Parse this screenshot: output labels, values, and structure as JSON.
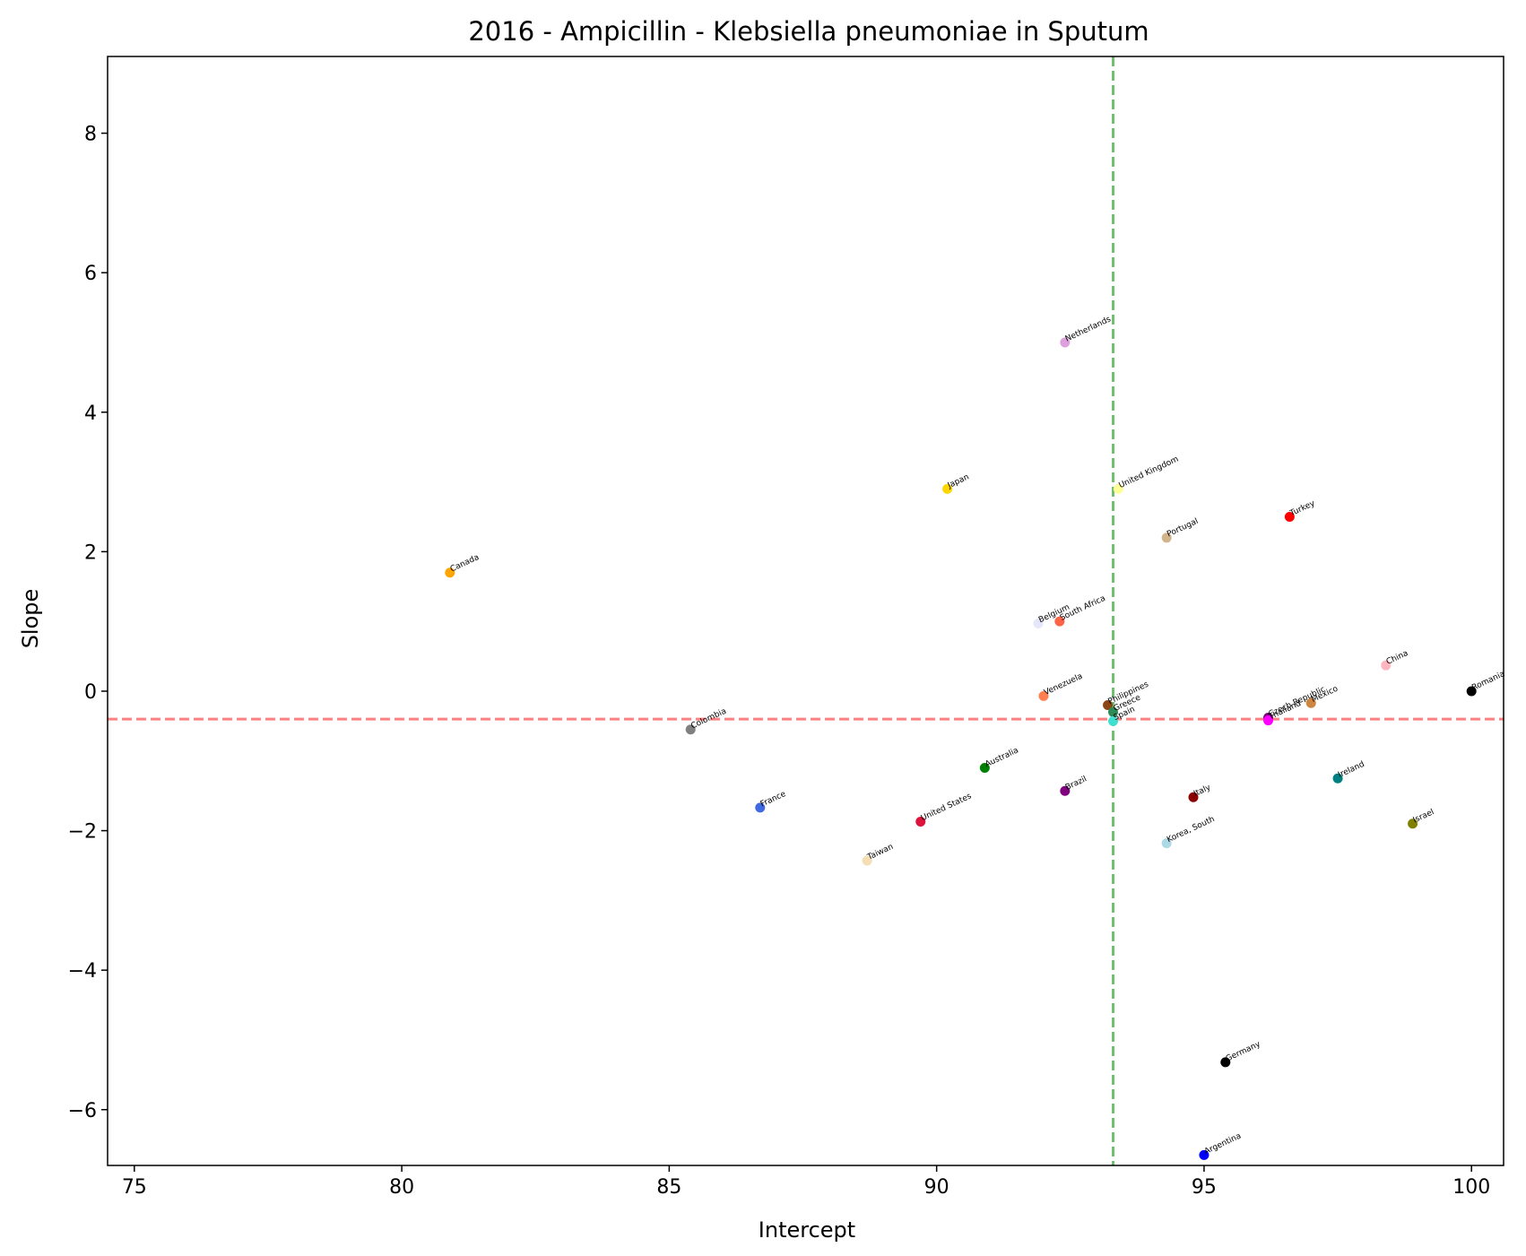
{
  "chart_data": {
    "type": "scatter",
    "title": "2016 - Ampicillin - Klebsiella pneumoniae in Sputum",
    "xlabel": "Intercept",
    "ylabel": "Slope",
    "xlim": [
      74.5,
      100.6
    ],
    "ylim": [
      -6.8,
      9.1
    ],
    "xticks": [
      75,
      80,
      85,
      90,
      95,
      100
    ],
    "yticks": [
      -6,
      -4,
      -2,
      0,
      2,
      4,
      6,
      8
    ],
    "xtick_labels": [
      "75",
      "80",
      "85",
      "90",
      "95",
      "100"
    ],
    "ytick_labels": [
      "−6",
      "−4",
      "−2",
      "0",
      "2",
      "4",
      "6",
      "8"
    ],
    "grid": false,
    "legend": "none",
    "reference_lines": [
      {
        "orientation": "horizontal",
        "value": -0.4,
        "color": "#ff8080",
        "style": "dashed"
      },
      {
        "orientation": "vertical",
        "value": 93.3,
        "color": "#70c070",
        "style": "dashed"
      }
    ],
    "points": [
      {
        "label": "Netherlands",
        "x": 92.4,
        "y": 5.0,
        "color": "#dda0dd"
      },
      {
        "label": "Japan",
        "x": 90.2,
        "y": 2.9,
        "color": "#ffd700"
      },
      {
        "label": "United Kingdom",
        "x": 93.4,
        "y": 2.9,
        "color": "#ffff99"
      },
      {
        "label": "Portugal",
        "x": 94.3,
        "y": 2.2,
        "color": "#d2b48c"
      },
      {
        "label": "Turkey",
        "x": 96.6,
        "y": 2.5,
        "color": "#ff0000"
      },
      {
        "label": "Canada",
        "x": 80.9,
        "y": 1.7,
        "color": "#ffa500"
      },
      {
        "label": "Belgium",
        "x": 91.9,
        "y": 0.97,
        "color": "#e6e6fa"
      },
      {
        "label": "South Africa",
        "x": 92.3,
        "y": 1.0,
        "color": "#ff6347"
      },
      {
        "label": "China",
        "x": 98.4,
        "y": 0.37,
        "color": "#ffb6c1"
      },
      {
        "label": "Romania",
        "x": 100.0,
        "y": 0.0,
        "color": "#000000"
      },
      {
        "label": "Venezuela",
        "x": 92.0,
        "y": -0.07,
        "color": "#ff7f50"
      },
      {
        "label": "Philippines",
        "x": 93.2,
        "y": -0.2,
        "color": "#8b4513"
      },
      {
        "label": "Greece",
        "x": 93.3,
        "y": -0.3,
        "color": "#2e8b57"
      },
      {
        "label": "Spain",
        "x": 93.3,
        "y": -0.43,
        "color": "#40e0d0"
      },
      {
        "label": "Czech Republic",
        "x": 96.2,
        "y": -0.38,
        "color": "#800080"
      },
      {
        "label": "Thailand",
        "x": 96.2,
        "y": -0.42,
        "color": "#ff00ff"
      },
      {
        "label": "Mexico",
        "x": 97.0,
        "y": -0.17,
        "color": "#cd853f"
      },
      {
        "label": "Colombia",
        "x": 85.4,
        "y": -0.55,
        "color": "#808080"
      },
      {
        "label": "Australia",
        "x": 90.9,
        "y": -1.1,
        "color": "#008000"
      },
      {
        "label": "Brazil",
        "x": 92.4,
        "y": -1.43,
        "color": "#800080"
      },
      {
        "label": "Italy",
        "x": 94.8,
        "y": -1.52,
        "color": "#8b0000"
      },
      {
        "label": "Ireland",
        "x": 97.5,
        "y": -1.25,
        "color": "#008080"
      },
      {
        "label": "France",
        "x": 86.7,
        "y": -1.67,
        "color": "#4169e1"
      },
      {
        "label": "United States",
        "x": 89.7,
        "y": -1.87,
        "color": "#dc143c"
      },
      {
        "label": "Israel",
        "x": 98.9,
        "y": -1.9,
        "color": "#808000"
      },
      {
        "label": "Korea, South",
        "x": 94.3,
        "y": -2.18,
        "color": "#add8e6"
      },
      {
        "label": "Taiwan",
        "x": 88.7,
        "y": -2.43,
        "color": "#f5deb3"
      },
      {
        "label": "Germany",
        "x": 95.4,
        "y": -5.32,
        "color": "#000000"
      },
      {
        "label": "Argentina",
        "x": 95.0,
        "y": -6.65,
        "color": "#0000ff"
      }
    ]
  }
}
